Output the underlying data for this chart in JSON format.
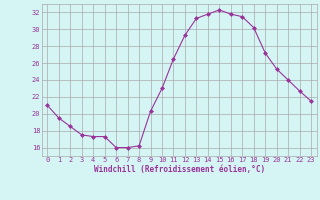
{
  "x": [
    0,
    1,
    2,
    3,
    4,
    5,
    6,
    7,
    8,
    9,
    10,
    11,
    12,
    13,
    14,
    15,
    16,
    17,
    18,
    19,
    20,
    21,
    22,
    23
  ],
  "y": [
    21.0,
    19.5,
    18.5,
    17.5,
    17.3,
    17.3,
    16.0,
    16.0,
    16.2,
    20.3,
    23.0,
    26.5,
    29.3,
    31.3,
    31.8,
    32.3,
    31.8,
    31.5,
    30.2,
    27.2,
    25.3,
    24.0,
    22.7,
    21.5
  ],
  "line_color": "#993399",
  "marker": "D",
  "marker_size": 2,
  "bg_color": "#d5f5f5",
  "grid_color": "#aaaaaa",
  "xlabel": "Windchill (Refroidissement éolien,°C)",
  "xlabel_color": "#993399",
  "tick_color": "#993399",
  "ylim": [
    15,
    33
  ],
  "yticks": [
    16,
    18,
    20,
    22,
    24,
    26,
    28,
    30,
    32
  ],
  "xlim": [
    -0.5,
    23.5
  ],
  "xticks": [
    0,
    1,
    2,
    3,
    4,
    5,
    6,
    7,
    8,
    9,
    10,
    11,
    12,
    13,
    14,
    15,
    16,
    17,
    18,
    19,
    20,
    21,
    22,
    23
  ],
  "tick_fontsize": 5.0,
  "xlabel_fontsize": 5.5
}
